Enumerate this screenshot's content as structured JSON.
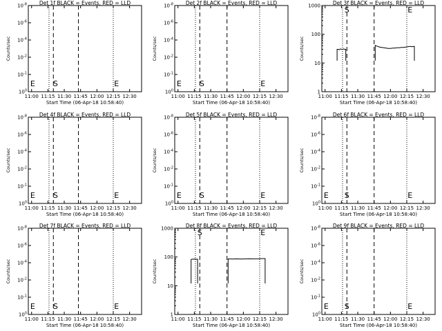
{
  "chart_data": [
    {
      "title": "Det 1f BLACK = Events, RED = LLD",
      "type": "line",
      "xlabel": "Start Time (06-Apr-18 10:58:40)",
      "ylabel": "Counts/sec",
      "yscale": "log",
      "ylim": [
        1,
        1e-08
      ],
      "yticks": [
        "10^-8",
        "10^-6",
        "10^-4",
        "10^-2",
        "10^-1",
        "10^0"
      ],
      "xticks": [
        "11:00",
        "11:15",
        "11:30",
        "11:45",
        "12:00",
        "12:15",
        "12:30"
      ],
      "markers": [
        {
          "label": "E",
          "x": "11:01"
        },
        {
          "label": "S",
          "x": "11:22"
        },
        {
          "label": "E",
          "x": "12:18"
        }
      ],
      "dotted_lines": [
        "11:16",
        "12:15"
      ],
      "dashed_lines": [
        "11:20",
        "11:43"
      ],
      "series": []
    },
    {
      "title": "Det 2f BLACK = Events, RED = LLD",
      "type": "line",
      "xlabel": "Start Time (06-Apr-18 10:58:40)",
      "ylabel": "Counts/sec",
      "yscale": "log",
      "ylim": [
        1,
        1e-08
      ],
      "yticks": [
        "10^-8",
        "10^-6",
        "10^-4",
        "10^-2",
        "10^-1",
        "10^0"
      ],
      "xticks": [
        "11:00",
        "11:15",
        "11:30",
        "11:45",
        "12:00",
        "12:15",
        "12:30"
      ],
      "markers": [
        {
          "label": "E",
          "x": "11:01"
        },
        {
          "label": "S",
          "x": "11:22"
        },
        {
          "label": "E",
          "x": "12:18"
        }
      ],
      "dotted_lines": [
        "11:16",
        "12:15"
      ],
      "dashed_lines": [
        "11:20",
        "11:45"
      ],
      "series": []
    },
    {
      "title": "Det 3f BLACK = Events, RED = LLD",
      "type": "line",
      "xlabel": "Start Time (06-Apr-18 10:58:40)",
      "ylabel": "Counts/sec",
      "yscale": "log",
      "ylim": [
        1,
        1000
      ],
      "yticks": [
        "1",
        "10",
        "100",
        "1000"
      ],
      "xticks": [
        "11:00",
        "11:15",
        "11:30",
        "11:45",
        "12:00",
        "12:15",
        "12:30"
      ],
      "markers": [
        {
          "label": "S",
          "x": "11:20"
        },
        {
          "label": "E",
          "x": "12:18"
        }
      ],
      "dotted_lines": [
        "11:16",
        "12:15"
      ],
      "dashed_lines": [
        "11:20",
        "11:45"
      ],
      "series": [
        {
          "x": [
            "11:11",
            "11:12",
            "11:13",
            "11:14",
            "11:15",
            "11:16",
            "11:17",
            "11:18",
            "11:19"
          ],
          "values": [
            30,
            30,
            29,
            31,
            30,
            30,
            31,
            30,
            30
          ]
        },
        {
          "x": [
            "11:46",
            "11:48",
            "11:50",
            "11:52",
            "11:54",
            "11:56",
            "11:58",
            "12:00",
            "12:02",
            "12:04",
            "12:06",
            "12:08",
            "12:10",
            "12:12",
            "12:14",
            "12:16",
            "12:18",
            "12:20",
            "12:22"
          ],
          "values": [
            41,
            38,
            36,
            35,
            34,
            33,
            32,
            32,
            33,
            33,
            34,
            34,
            35,
            35,
            36,
            37,
            38,
            37,
            38
          ]
        }
      ]
    },
    {
      "title": "Det 4f BLACK = Events, RED = LLD",
      "type": "line",
      "xlabel": "Start Time (06-Apr-18 10:58:40)",
      "ylabel": "Counts/sec",
      "yscale": "log",
      "ylim": [
        1,
        1e-08
      ],
      "yticks": [
        "10^-8",
        "10^-6",
        "10^-4",
        "10^-2",
        "10^-1",
        "10^0"
      ],
      "xticks": [
        "11:00",
        "11:15",
        "11:30",
        "11:45",
        "12:00",
        "12:15",
        "12:30"
      ],
      "markers": [
        {
          "label": "E",
          "x": "11:01"
        },
        {
          "label": "S",
          "x": "11:22"
        },
        {
          "label": "E",
          "x": "12:18"
        }
      ],
      "dotted_lines": [
        "11:16",
        "12:15"
      ],
      "dashed_lines": [
        "11:20",
        "11:43"
      ],
      "series": []
    },
    {
      "title": "Det 5f BLACK = Events, RED = LLD",
      "type": "line",
      "xlabel": "Start Time (06-Apr-18 10:58:40)",
      "ylabel": "Counts/sec",
      "yscale": "log",
      "ylim": [
        1,
        1e-08
      ],
      "yticks": [
        "10^-8",
        "10^-6",
        "10^-4",
        "10^-2",
        "10^-1",
        "10^0"
      ],
      "xticks": [
        "11:00",
        "11:15",
        "11:30",
        "11:45",
        "12:00",
        "12:15",
        "12:30"
      ],
      "markers": [
        {
          "label": "E",
          "x": "11:01"
        },
        {
          "label": "S",
          "x": "11:22"
        },
        {
          "label": "E",
          "x": "12:18"
        }
      ],
      "dotted_lines": [
        "11:16",
        "12:15"
      ],
      "dashed_lines": [
        "11:20",
        "11:45"
      ],
      "series": []
    },
    {
      "title": "Det 6f BLACK = Events, RED = LLD",
      "type": "line",
      "xlabel": "Start Time (06-Apr-18 10:58:40)",
      "ylabel": "Counts/sec",
      "yscale": "log",
      "ylim": [
        1,
        1e-08
      ],
      "yticks": [
        "10^-8",
        "10^-6",
        "10^-4",
        "10^-2",
        "10^-1",
        "10^0"
      ],
      "xticks": [
        "11:00",
        "11:15",
        "11:30",
        "11:45",
        "12:00",
        "12:15",
        "12:30"
      ],
      "markers": [
        {
          "label": "E",
          "x": "11:01"
        },
        {
          "label": "S",
          "x": "11:20"
        },
        {
          "label": "E",
          "x": "12:18"
        }
      ],
      "dotted_lines": [
        "11:16",
        "12:15"
      ],
      "dashed_lines": [
        "11:20",
        "11:45"
      ],
      "series": []
    },
    {
      "title": "Det 7f BLACK = Events, RED = LLD",
      "type": "line",
      "xlabel": "Start Time (06-Apr-18 10:58:40)",
      "ylabel": "Counts/sec",
      "yscale": "log",
      "ylim": [
        1,
        1e-08
      ],
      "yticks": [
        "10^-8",
        "10^-6",
        "10^-4",
        "10^-2",
        "10^-1",
        "10^0"
      ],
      "xticks": [
        "11:00",
        "11:15",
        "11:30",
        "11:45",
        "12:00",
        "12:15",
        "12:30"
      ],
      "markers": [
        {
          "label": "E",
          "x": "11:01"
        },
        {
          "label": "S",
          "x": "11:22"
        },
        {
          "label": "E",
          "x": "12:18"
        }
      ],
      "dotted_lines": [
        "11:16",
        "12:15"
      ],
      "dashed_lines": [
        "11:20",
        "11:43"
      ],
      "series": []
    },
    {
      "title": "Det 8f BLACK = Events, RED = LLD",
      "type": "line",
      "xlabel": "Start Time (06-Apr-18 10:58:40)",
      "ylabel": "Counts/sec",
      "yscale": "log",
      "ylim": [
        1,
        1000
      ],
      "yticks": [
        "1",
        "10",
        "100",
        "1000"
      ],
      "xticks": [
        "11:00",
        "11:15",
        "11:30",
        "11:45",
        "12:00",
        "12:15",
        "12:30"
      ],
      "markers": [
        {
          "label": "S",
          "x": "11:20"
        },
        {
          "label": "E",
          "x": "12:18"
        }
      ],
      "dotted_lines": [
        "11:16",
        "12:15"
      ],
      "dashed_lines": [
        "11:20",
        "11:45"
      ],
      "series": [
        {
          "x": [
            "11:12",
            "11:13",
            "11:14",
            "11:15",
            "11:16",
            "11:17",
            "11:18"
          ],
          "values": [
            82,
            84,
            83,
            85,
            84,
            83,
            84
          ]
        },
        {
          "x": [
            "11:46",
            "11:50",
            "11:54",
            "11:58",
            "12:02",
            "12:06",
            "12:10",
            "12:14",
            "12:18",
            "12:20"
          ],
          "values": [
            86,
            85,
            86,
            85,
            86,
            87,
            86,
            87,
            88,
            88
          ]
        }
      ]
    },
    {
      "title": "Det 9f BLACK = Events, RED = LLD",
      "type": "line",
      "xlabel": "Start Time (06-Apr-18 10:58:40)",
      "ylabel": "Counts/sec",
      "yscale": "log",
      "ylim": [
        1,
        1e-08
      ],
      "yticks": [
        "10^-8",
        "10^-6",
        "10^-4",
        "10^-2",
        "10^-1",
        "10^0"
      ],
      "xticks": [
        "11:00",
        "11:15",
        "11:30",
        "11:45",
        "12:00",
        "12:15",
        "12:30"
      ],
      "markers": [
        {
          "label": "E",
          "x": "11:01"
        },
        {
          "label": "S",
          "x": "11:20"
        },
        {
          "label": "E",
          "x": "12:18"
        }
      ],
      "dotted_lines": [
        "11:16",
        "12:15"
      ],
      "dashed_lines": [
        "11:20",
        "11:45"
      ],
      "series": []
    }
  ]
}
